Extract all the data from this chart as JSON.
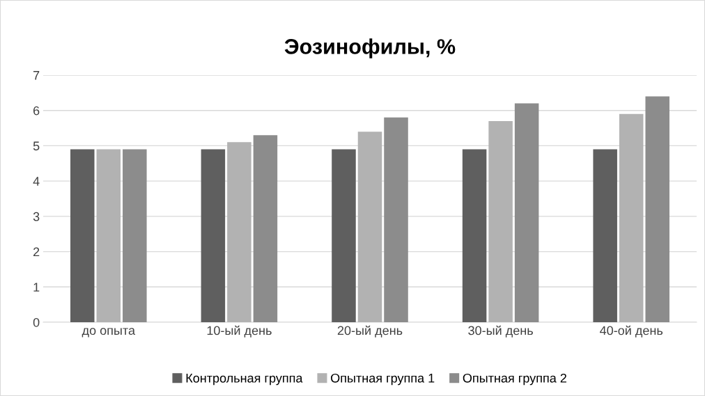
{
  "chart_data": {
    "type": "bar",
    "title": "Эозинофилы, %",
    "categories": [
      "до опыта",
      "10-ый день",
      "20-ый день",
      "30-ый день",
      "40-ой день"
    ],
    "series": [
      {
        "name": "Контрольная группа",
        "color": "#5f5f5f",
        "values": [
          4.9,
          4.9,
          4.9,
          4.9,
          4.9
        ]
      },
      {
        "name": "Опытная группа 1",
        "color": "#b2b2b2",
        "values": [
          4.9,
          5.1,
          5.4,
          5.7,
          5.9
        ]
      },
      {
        "name": "Опытная группа 2",
        "color": "#8c8c8c",
        "values": [
          4.9,
          5.3,
          5.8,
          6.2,
          6.4
        ]
      }
    ],
    "ylim": [
      0,
      7
    ],
    "yticks": [
      0,
      1,
      2,
      3,
      4,
      5,
      6,
      7
    ],
    "grid": "y",
    "legend": "bottom"
  }
}
